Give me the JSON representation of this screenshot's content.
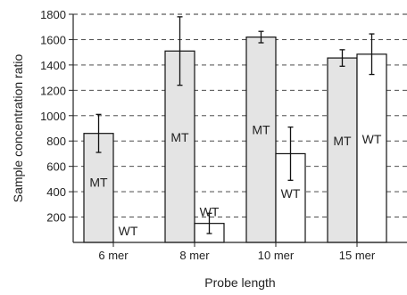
{
  "chart_data": {
    "type": "bar",
    "categories": [
      "6 mer",
      "8 mer",
      "10 mer",
      "15 mer"
    ],
    "series": [
      {
        "name": "MT",
        "color": "#e4e4e4",
        "values": [
          860,
          1510,
          1620,
          1455
        ],
        "errors": [
          150,
          270,
          45,
          65
        ],
        "labels": [
          "MT",
          "MT",
          "MT",
          "MT"
        ]
      },
      {
        "name": "WT",
        "color": "#ffffff",
        "values": [
          0,
          150,
          700,
          1485
        ],
        "errors": [
          0,
          80,
          210,
          160
        ],
        "labels": [
          "WT",
          "WT",
          "WT",
          "WT"
        ]
      }
    ],
    "xlabel": "Probe length",
    "ylabel": "Sample concentration ratio",
    "ylim": [
      0,
      1800
    ],
    "yticks": [
      200,
      400,
      600,
      800,
      1000,
      1200,
      1400,
      1600,
      1800
    ],
    "grid": true
  }
}
